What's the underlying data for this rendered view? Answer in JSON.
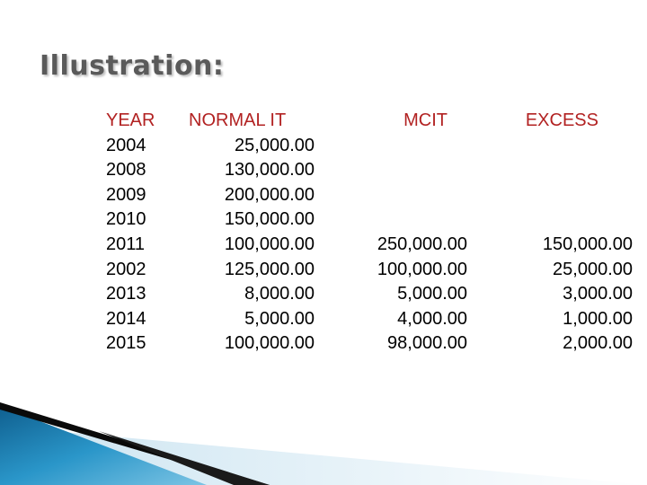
{
  "title": "Illustration:",
  "table": {
    "headers": [
      "YEAR",
      "NORMAL IT",
      "MCIT",
      "EXCESS"
    ],
    "rows": [
      {
        "year": "2004",
        "normal_it": "25,000.00",
        "mcit": "",
        "excess": ""
      },
      {
        "year": "2008",
        "normal_it": "130,000.00",
        "mcit": "",
        "excess": ""
      },
      {
        "year": "2009",
        "normal_it": "200,000.00",
        "mcit": "",
        "excess": ""
      },
      {
        "year": "2010",
        "normal_it": "150,000.00",
        "mcit": "",
        "excess": ""
      },
      {
        "year": "2011",
        "normal_it": "100,000.00",
        "mcit": "250,000.00",
        "excess": "150,000.00"
      },
      {
        "year": "2002",
        "normal_it": "125,000.00",
        "mcit": "100,000.00",
        "excess": "25,000.00"
      },
      {
        "year": "2013",
        "normal_it": "8,000.00",
        "mcit": "5,000.00",
        "excess": "3,000.00"
      },
      {
        "year": "2014",
        "normal_it": "5,000.00",
        "mcit": "4,000.00",
        "excess": "1,000.00"
      },
      {
        "year": "2015",
        "normal_it": "100,000.00",
        "mcit": "98,000.00",
        "excess": "2,000.00"
      }
    ]
  },
  "colors": {
    "header_text": "#b22222",
    "title_text": "#5a5a5a",
    "accent_blue": "#1e7fb5"
  }
}
